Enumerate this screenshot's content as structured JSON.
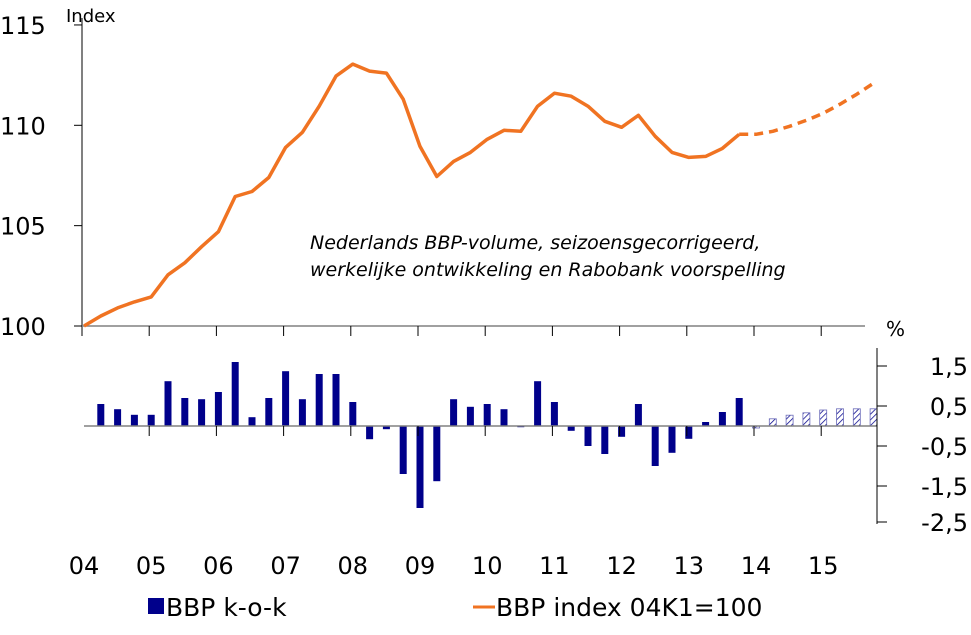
{
  "colors": {
    "line": "#f07322",
    "bar": "#00008b",
    "axis": "#808080"
  },
  "x_labels": [
    "04",
    "05",
    "06",
    "07",
    "08",
    "09",
    "10",
    "11",
    "12",
    "13",
    "14",
    "15"
  ],
  "legend": {
    "bar_label": "BBP k-o-k",
    "line_label": "BBP index 04K1=100"
  },
  "chart_data": [
    {
      "type": "line",
      "ylabel": "Index",
      "ylim": [
        100,
        115
      ],
      "yticks": [
        "100",
        "105",
        "110",
        "115"
      ],
      "annotation": [
        "Nederlands BBP-volume, seizoensgecorrigeerd,",
        "werkelijke ontwikkeling en Rabobank voorspelling"
      ],
      "series": [
        {
          "name": "BBP index 04K1=100",
          "style": "solid",
          "values": [
            100,
            100.5,
            100.9,
            101.2,
            101.45,
            102.55,
            103.15,
            103.95,
            104.7,
            106.45,
            106.7,
            107.4,
            108.9,
            109.65,
            110.95,
            112.45,
            113.05,
            112.7,
            112.6,
            111.3,
            108.95,
            107.45,
            108.2,
            108.65,
            109.3,
            109.75,
            109.7,
            110.95,
            111.6,
            111.45,
            110.95,
            110.2,
            109.9,
            110.5,
            109.45,
            108.65,
            108.4,
            108.45,
            108.85,
            109.55
          ]
        },
        {
          "name": "BBP index 04K1=100 (voorspelling)",
          "style": "dashed",
          "start_index": 39,
          "values": [
            109.55,
            109.55,
            109.7,
            109.95,
            110.25,
            110.6,
            111.05,
            111.55,
            112.1
          ]
        }
      ]
    },
    {
      "type": "bar",
      "ylabel": "%",
      "ylim": [
        -2.5,
        1.9
      ],
      "yticks": [
        "1,5",
        "0,5",
        "-0,5",
        "-1,5",
        "-2,5"
      ],
      "series": [
        {
          "name": "BBP k-o-k",
          "style": "solid",
          "start_index": 1,
          "values": [
            0.55,
            0.42,
            0.28,
            0.28,
            1.12,
            0.7,
            0.67,
            0.85,
            1.6,
            0.22,
            0.7,
            1.37,
            0.67,
            1.3,
            1.3,
            0.6,
            -0.33,
            -0.08,
            -1.2,
            -2.05,
            -1.38,
            0.67,
            0.48,
            0.55,
            0.42,
            -0.03,
            1.12,
            0.6,
            -0.12,
            -0.5,
            -0.7,
            -0.27,
            0.55,
            -1.0,
            -0.67,
            -0.32,
            0.1,
            0.35,
            0.7
          ]
        },
        {
          "name": "BBP k-o-k (voorspelling)",
          "style": "hatched",
          "start_index": 40,
          "values": [
            -0.05,
            0.18,
            0.27,
            0.33,
            0.4,
            0.43,
            0.43,
            0.43
          ]
        }
      ]
    }
  ]
}
